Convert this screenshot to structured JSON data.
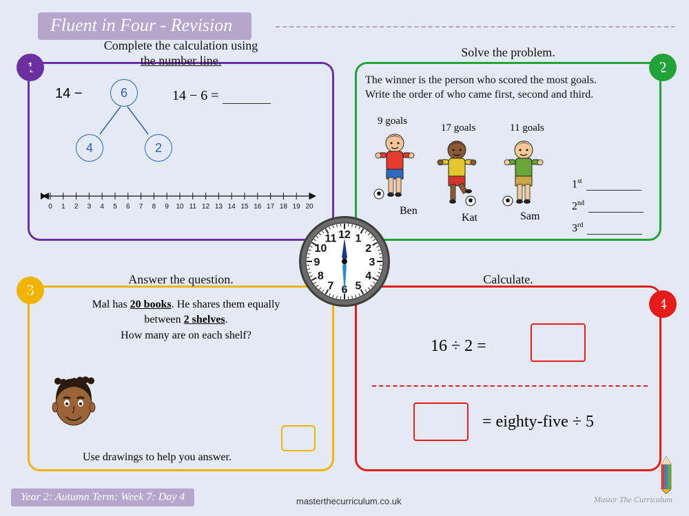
{
  "title": "Fluent in Four - Revision",
  "colors": {
    "bg": "#e4eaf3",
    "accent": "#b5a6cd",
    "p1": "#6b2fa0",
    "p2": "#22a33a",
    "p3": "#f0b400",
    "p4": "#e31b1b",
    "bond": "#2b5fb3"
  },
  "panel1": {
    "num": "1",
    "instr_l1": "Complete the calculation using",
    "instr_l2": "the number line.",
    "left_expr": "14  −",
    "bond_top": "6",
    "bond_left": "4",
    "bond_right": "2",
    "equation": "14 − 6 =",
    "numline": {
      "min": 0,
      "max": 20,
      "ticks": [
        0,
        1,
        2,
        3,
        4,
        5,
        6,
        7,
        8,
        9,
        10,
        11,
        12,
        13,
        14,
        15,
        16,
        17,
        18,
        19,
        20
      ]
    }
  },
  "panel2": {
    "num": "2",
    "instr": "Solve the problem.",
    "text_l1": "The winner is the person who scored the most goals.",
    "text_l2": "Write the order of who came first, second and third.",
    "kids": [
      {
        "name": "Ben",
        "goals": "9 goals",
        "shirt": "#e43b2f",
        "shorts": "#2c6cc0",
        "hair": "#3a2212",
        "skin": "#f5c59a"
      },
      {
        "name": "Kat",
        "goals": "17 goals",
        "shirt": "#e3c62c",
        "shorts": "#d8352a",
        "hair": "#2a1a10",
        "skin": "#8a5a36"
      },
      {
        "name": "Sam",
        "goals": "11 goals",
        "shirt": "#6aa53a",
        "shorts": "#caa84a",
        "hair": "#5b4026",
        "skin": "#f3c998"
      }
    ],
    "ranks": [
      "1",
      "2",
      "3"
    ],
    "suffix": [
      "st",
      "nd",
      "rd"
    ]
  },
  "panel3": {
    "num": "3",
    "instr": "Answer the question.",
    "line1_a": "Mal has ",
    "line1_b": "20 books",
    "line1_c": ". He shares them equally",
    "line2_a": "between ",
    "line2_b": "2 shelves",
    "line2_c": ".",
    "line3": "How many are on each shelf?",
    "help": "Use drawings to help you answer.",
    "face": {
      "skin": "#9a6338",
      "hair": "#2b1a10"
    }
  },
  "panel4": {
    "num": "4",
    "instr": "Calculate.",
    "eq1": "16 ÷ 2 =",
    "eq2": "= eighty-five ÷ 5"
  },
  "clock": {
    "face": "#ffffff",
    "ring": "#6b6b6b",
    "shadow": "#3e3e3e",
    "hour_hand": "#1a3a8a",
    "minute_hand": "#2a8acc",
    "numbers": [
      "12",
      "1",
      "2",
      "3",
      "4",
      "5",
      "6",
      "7",
      "8",
      "9",
      "10",
      "11"
    ]
  },
  "footer": {
    "bar": "Year 2: Autumn Term: Week 7: Day 4",
    "url": "masterthecurriculum.co.uk",
    "brand": "Master The Curriculum"
  }
}
